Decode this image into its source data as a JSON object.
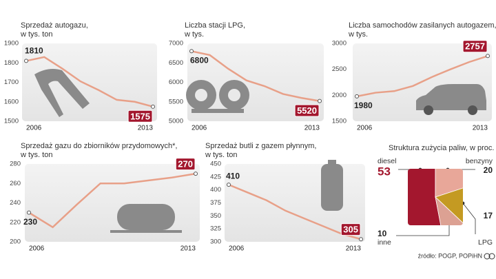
{
  "chart_data": [
    {
      "type": "line",
      "title": "Sprzedaż autogazu,",
      "subtitle": "w tys. ton",
      "color": "#e8a088",
      "categories": [
        "2006",
        null,
        null,
        null,
        null,
        null,
        null,
        "2013"
      ],
      "values": [
        1810,
        1830,
        1770,
        1705,
        1660,
        1610,
        1600,
        1575
      ],
      "ylim": [
        1500,
        1900
      ],
      "yticks": [
        1500,
        1600,
        1700,
        1800,
        1900
      ]
    },
    {
      "type": "line",
      "title": "Liczba stacji LPG,",
      "subtitle": "w tys.",
      "color": "#e8a088",
      "categories": [
        "2006",
        null,
        null,
        null,
        null,
        null,
        null,
        "2013"
      ],
      "values": [
        6800,
        6700,
        6350,
        6050,
        5900,
        5700,
        5600,
        5520
      ],
      "ylim": [
        5000,
        7000
      ],
      "yticks": [
        5000,
        5500,
        6000,
        6500,
        7000
      ]
    },
    {
      "type": "line",
      "title": "Liczba samochodów zasilanych autogazem,",
      "subtitle": "w tys.",
      "color": "#e8a088",
      "categories": [
        "2006",
        null,
        null,
        null,
        null,
        null,
        null,
        "2013"
      ],
      "values": [
        1980,
        2050,
        2080,
        2180,
        2350,
        2500,
        2640,
        2757
      ],
      "ylim": [
        1500,
        3000
      ],
      "yticks": [
        1500,
        2000,
        2500,
        3000
      ]
    },
    {
      "type": "line",
      "title": "Sprzedaż gazu do zbiorników przydomowych*,",
      "subtitle": "w tys. ton",
      "color": "#e8a088",
      "categories": [
        "2006",
        null,
        null,
        null,
        null,
        null,
        null,
        "2013"
      ],
      "values": [
        230,
        215,
        238,
        260,
        260,
        263,
        266,
        270
      ],
      "ylim": [
        200,
        280
      ],
      "yticks": [
        200,
        220,
        240,
        260,
        280
      ]
    },
    {
      "type": "line",
      "title": "Sprzedaż butli z gazem płynnym,",
      "subtitle": "w tys. ton",
      "color": "#e8a088",
      "categories": [
        "2006",
        null,
        null,
        null,
        null,
        null,
        null,
        "2013"
      ],
      "values": [
        410,
        395,
        380,
        360,
        345,
        330,
        315,
        305
      ],
      "ylim": [
        300,
        450
      ],
      "yticks": [
        300,
        325,
        350,
        375,
        400,
        425,
        450
      ]
    },
    {
      "type": "pie",
      "title": "Struktura zużycia paliw, w proc.",
      "categories": [
        "diesel",
        "benzyny",
        "LPG",
        "inne"
      ],
      "values": [
        53,
        20,
        17,
        10
      ],
      "colors": [
        "#a3172e",
        "#e8a799",
        "#c49a22",
        "#dca193"
      ]
    }
  ],
  "source": "źródło: POGP, POPiHN"
}
